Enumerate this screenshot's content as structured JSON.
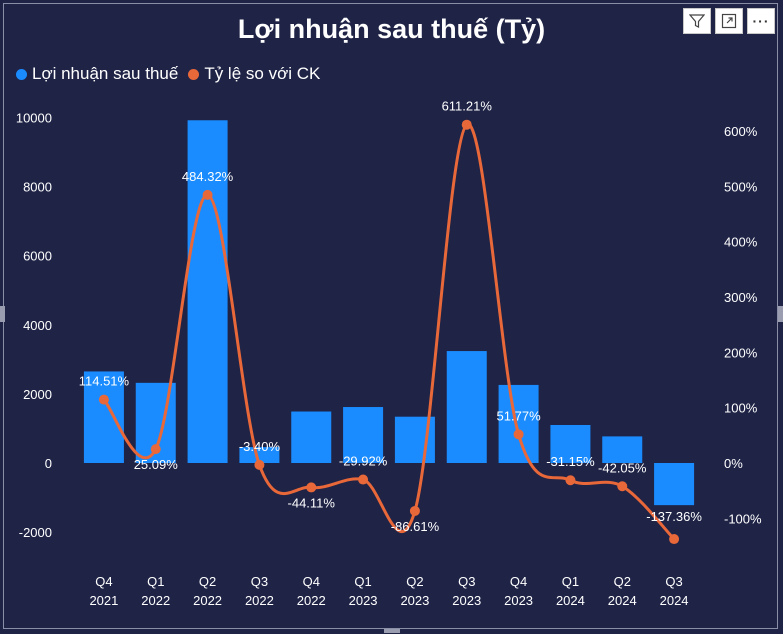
{
  "title": "Lợi nhuận sau thuế (Tỷ)",
  "toolbar": {
    "filter_icon": "filter-icon",
    "focus_icon": "focus-mode-icon",
    "more_icon": "more-options-icon",
    "more_label": "···"
  },
  "colors": {
    "background": "#1f2346",
    "bar": "#1a8cff",
    "line": "#e8683a",
    "text": "#ffffff"
  },
  "chart_data": {
    "type": "bar",
    "title": "Lợi nhuận sau thuế (Tỷ)",
    "legend_position": "top-left",
    "grid": false,
    "categories": [
      [
        "Q4",
        "2021"
      ],
      [
        "Q1",
        "2022"
      ],
      [
        "Q2",
        "2022"
      ],
      [
        "Q3",
        "2022"
      ],
      [
        "Q4",
        "2022"
      ],
      [
        "Q1",
        "2023"
      ],
      [
        "Q2",
        "2023"
      ],
      [
        "Q3",
        "2023"
      ],
      [
        "Q4",
        "2023"
      ],
      [
        "Q1",
        "2024"
      ],
      [
        "Q2",
        "2024"
      ],
      [
        "Q3",
        "2024"
      ]
    ],
    "series": [
      {
        "name": "Lợi nhuận sau thuế",
        "type": "bar",
        "axis": "left",
        "values": [
          2650,
          2320,
          9920,
          460,
          1490,
          1620,
          1340,
          3240,
          2260,
          1100,
          770,
          -1220
        ]
      },
      {
        "name": "Tỷ lệ so với CK",
        "type": "line",
        "axis": "right",
        "values": [
          114.51,
          25.09,
          484.32,
          -3.4,
          -44.11,
          -29.92,
          -86.61,
          611.21,
          51.77,
          -31.15,
          -42.05,
          -137.36
        ],
        "labels": [
          "114.51%",
          "25.09%",
          "484.32%",
          "-3.40%",
          "-44.11%",
          "-29.92%",
          "-86.61%",
          "611.21%",
          "51.77%",
          "-31.15%",
          "-42.05%",
          "-137.36%"
        ]
      }
    ],
    "y_left": {
      "ticks": [
        10000,
        8000,
        6000,
        4000,
        2000,
        0,
        -2000
      ],
      "tick_labels": [
        "10000",
        "8000",
        "6000",
        "4000",
        "2000",
        "0",
        "-2000"
      ],
      "range": [
        -2200,
        10300
      ]
    },
    "y_right": {
      "ticks": [
        600,
        500,
        400,
        300,
        200,
        100,
        0,
        -100
      ],
      "tick_labels": [
        "600%",
        "500%",
        "400%",
        "300%",
        "200%",
        "100%",
        "0%",
        "-100%"
      ],
      "range": [
        -150,
        650
      ]
    }
  }
}
